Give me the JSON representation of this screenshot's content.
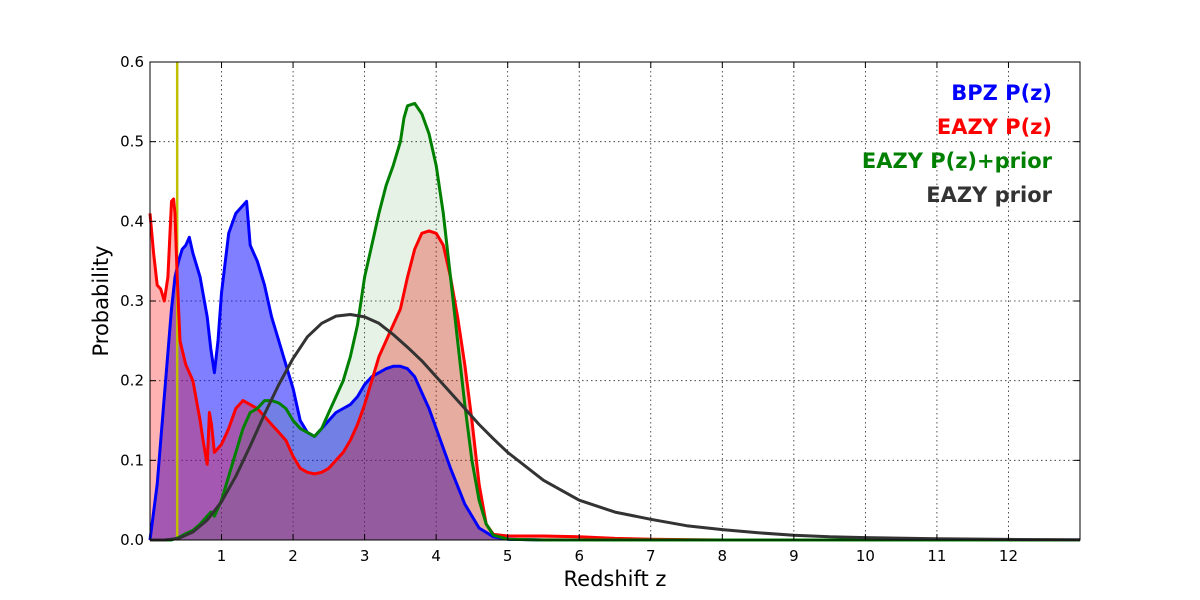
{
  "chart_data": {
    "type": "area",
    "title": "",
    "xlabel": "Redshift z",
    "ylabel": "Probability",
    "xlim": [
      0,
      13
    ],
    "ylim": [
      0,
      0.6
    ],
    "xticks": [
      1,
      2,
      3,
      4,
      5,
      6,
      7,
      8,
      9,
      10,
      11,
      12
    ],
    "yticks": [
      0.0,
      0.1,
      0.2,
      0.3,
      0.4,
      0.5,
      0.6
    ],
    "grid": true,
    "legend_position": "top-right",
    "vline": {
      "x": 0.38,
      "color": "#bfbf00"
    },
    "series": [
      {
        "name": "BPZ P(z)",
        "color": "#0000ff",
        "fill": "#0000ff",
        "fill_opacity": 0.5,
        "x": [
          0,
          0.1,
          0.2,
          0.3,
          0.35,
          0.4,
          0.45,
          0.5,
          0.55,
          0.6,
          0.7,
          0.8,
          0.85,
          0.9,
          0.95,
          1.0,
          1.1,
          1.2,
          1.25,
          1.3,
          1.35,
          1.4,
          1.45,
          1.5,
          1.6,
          1.7,
          1.8,
          1.9,
          2.0,
          2.1,
          2.2,
          2.3,
          2.4,
          2.5,
          2.6,
          2.7,
          2.8,
          2.9,
          3.0,
          3.1,
          3.2,
          3.3,
          3.4,
          3.5,
          3.6,
          3.7,
          3.8,
          3.9,
          4.0,
          4.2,
          4.4,
          4.6,
          4.8,
          5.0,
          5.5,
          6.0,
          13.0
        ],
        "y": [
          0.0,
          0.07,
          0.18,
          0.29,
          0.33,
          0.35,
          0.365,
          0.37,
          0.38,
          0.36,
          0.33,
          0.28,
          0.24,
          0.21,
          0.25,
          0.31,
          0.385,
          0.41,
          0.415,
          0.42,
          0.425,
          0.37,
          0.36,
          0.35,
          0.32,
          0.28,
          0.25,
          0.22,
          0.19,
          0.15,
          0.135,
          0.13,
          0.14,
          0.15,
          0.16,
          0.165,
          0.17,
          0.18,
          0.195,
          0.205,
          0.21,
          0.215,
          0.218,
          0.218,
          0.215,
          0.205,
          0.185,
          0.165,
          0.14,
          0.09,
          0.045,
          0.015,
          0.004,
          0.001,
          0.0,
          0.0,
          0.0
        ]
      },
      {
        "name": "EAZY P(z)",
        "color": "#ff0000",
        "fill": "#ff0000",
        "fill_opacity": 0.3,
        "x": [
          0,
          0.05,
          0.1,
          0.15,
          0.2,
          0.25,
          0.3,
          0.33,
          0.35,
          0.38,
          0.42,
          0.46,
          0.5,
          0.6,
          0.7,
          0.75,
          0.8,
          0.83,
          0.86,
          0.9,
          0.95,
          1.0,
          1.1,
          1.2,
          1.3,
          1.4,
          1.5,
          1.6,
          1.7,
          1.8,
          1.9,
          2.0,
          2.1,
          2.2,
          2.3,
          2.4,
          2.5,
          2.6,
          2.7,
          2.8,
          2.9,
          3.0,
          3.1,
          3.2,
          3.3,
          3.4,
          3.5,
          3.6,
          3.7,
          3.8,
          3.9,
          4.0,
          4.1,
          4.2,
          4.3,
          4.4,
          4.5,
          4.6,
          4.7,
          4.8,
          5.0,
          5.5,
          6.0,
          6.5,
          7.0,
          8.0,
          13.0
        ],
        "y": [
          0.41,
          0.36,
          0.32,
          0.315,
          0.3,
          0.33,
          0.425,
          0.428,
          0.41,
          0.33,
          0.25,
          0.235,
          0.22,
          0.2,
          0.15,
          0.12,
          0.095,
          0.16,
          0.145,
          0.11,
          0.115,
          0.12,
          0.14,
          0.165,
          0.175,
          0.17,
          0.165,
          0.155,
          0.145,
          0.135,
          0.125,
          0.105,
          0.09,
          0.085,
          0.083,
          0.085,
          0.09,
          0.1,
          0.11,
          0.125,
          0.145,
          0.17,
          0.2,
          0.23,
          0.25,
          0.27,
          0.29,
          0.33,
          0.365,
          0.385,
          0.388,
          0.385,
          0.37,
          0.33,
          0.28,
          0.22,
          0.15,
          0.07,
          0.02,
          0.007,
          0.005,
          0.005,
          0.004,
          0.002,
          0.001,
          0.0,
          0.0
        ]
      },
      {
        "name": "EAZY P(z)+prior",
        "color": "#008000",
        "fill": "#008000",
        "fill_opacity": 0.1,
        "x": [
          0,
          0.3,
          0.4,
          0.5,
          0.6,
          0.7,
          0.8,
          0.85,
          0.9,
          1.0,
          1.1,
          1.2,
          1.3,
          1.4,
          1.5,
          1.6,
          1.7,
          1.8,
          1.9,
          2.0,
          2.1,
          2.2,
          2.3,
          2.4,
          2.5,
          2.6,
          2.7,
          2.8,
          2.9,
          3.0,
          3.1,
          3.2,
          3.3,
          3.4,
          3.5,
          3.55,
          3.6,
          3.7,
          3.8,
          3.9,
          4.0,
          4.1,
          4.2,
          4.3,
          4.4,
          4.5,
          4.6,
          4.7,
          4.8,
          5.0,
          5.5,
          13.0
        ],
        "y": [
          0.0,
          0.0,
          0.003,
          0.008,
          0.012,
          0.02,
          0.03,
          0.035,
          0.03,
          0.05,
          0.08,
          0.11,
          0.14,
          0.16,
          0.165,
          0.175,
          0.175,
          0.172,
          0.165,
          0.15,
          0.14,
          0.135,
          0.13,
          0.14,
          0.16,
          0.18,
          0.2,
          0.23,
          0.27,
          0.33,
          0.37,
          0.41,
          0.445,
          0.47,
          0.5,
          0.53,
          0.545,
          0.548,
          0.535,
          0.51,
          0.47,
          0.41,
          0.33,
          0.25,
          0.17,
          0.1,
          0.05,
          0.02,
          0.006,
          0.001,
          0.0,
          0.0
        ]
      },
      {
        "name": "EAZY prior",
        "color": "#333333",
        "fill": "none",
        "fill_opacity": 0,
        "x": [
          0,
          0.2,
          0.4,
          0.6,
          0.8,
          1.0,
          1.2,
          1.4,
          1.6,
          1.8,
          2.0,
          2.2,
          2.4,
          2.6,
          2.8,
          3.0,
          3.2,
          3.4,
          3.6,
          3.8,
          4.0,
          4.2,
          4.4,
          4.6,
          4.8,
          5.0,
          5.5,
          6.0,
          6.5,
          7.0,
          7.5,
          8.0,
          8.5,
          9.0,
          9.5,
          10.0,
          11.0,
          12.0,
          13.0
        ],
        "y": [
          0.0,
          0.0,
          0.002,
          0.01,
          0.025,
          0.048,
          0.08,
          0.118,
          0.158,
          0.195,
          0.228,
          0.255,
          0.272,
          0.281,
          0.283,
          0.28,
          0.272,
          0.258,
          0.242,
          0.225,
          0.205,
          0.185,
          0.165,
          0.145,
          0.127,
          0.11,
          0.075,
          0.05,
          0.035,
          0.026,
          0.018,
          0.013,
          0.009,
          0.006,
          0.004,
          0.003,
          0.0015,
          0.0007,
          0.0003
        ]
      }
    ]
  }
}
